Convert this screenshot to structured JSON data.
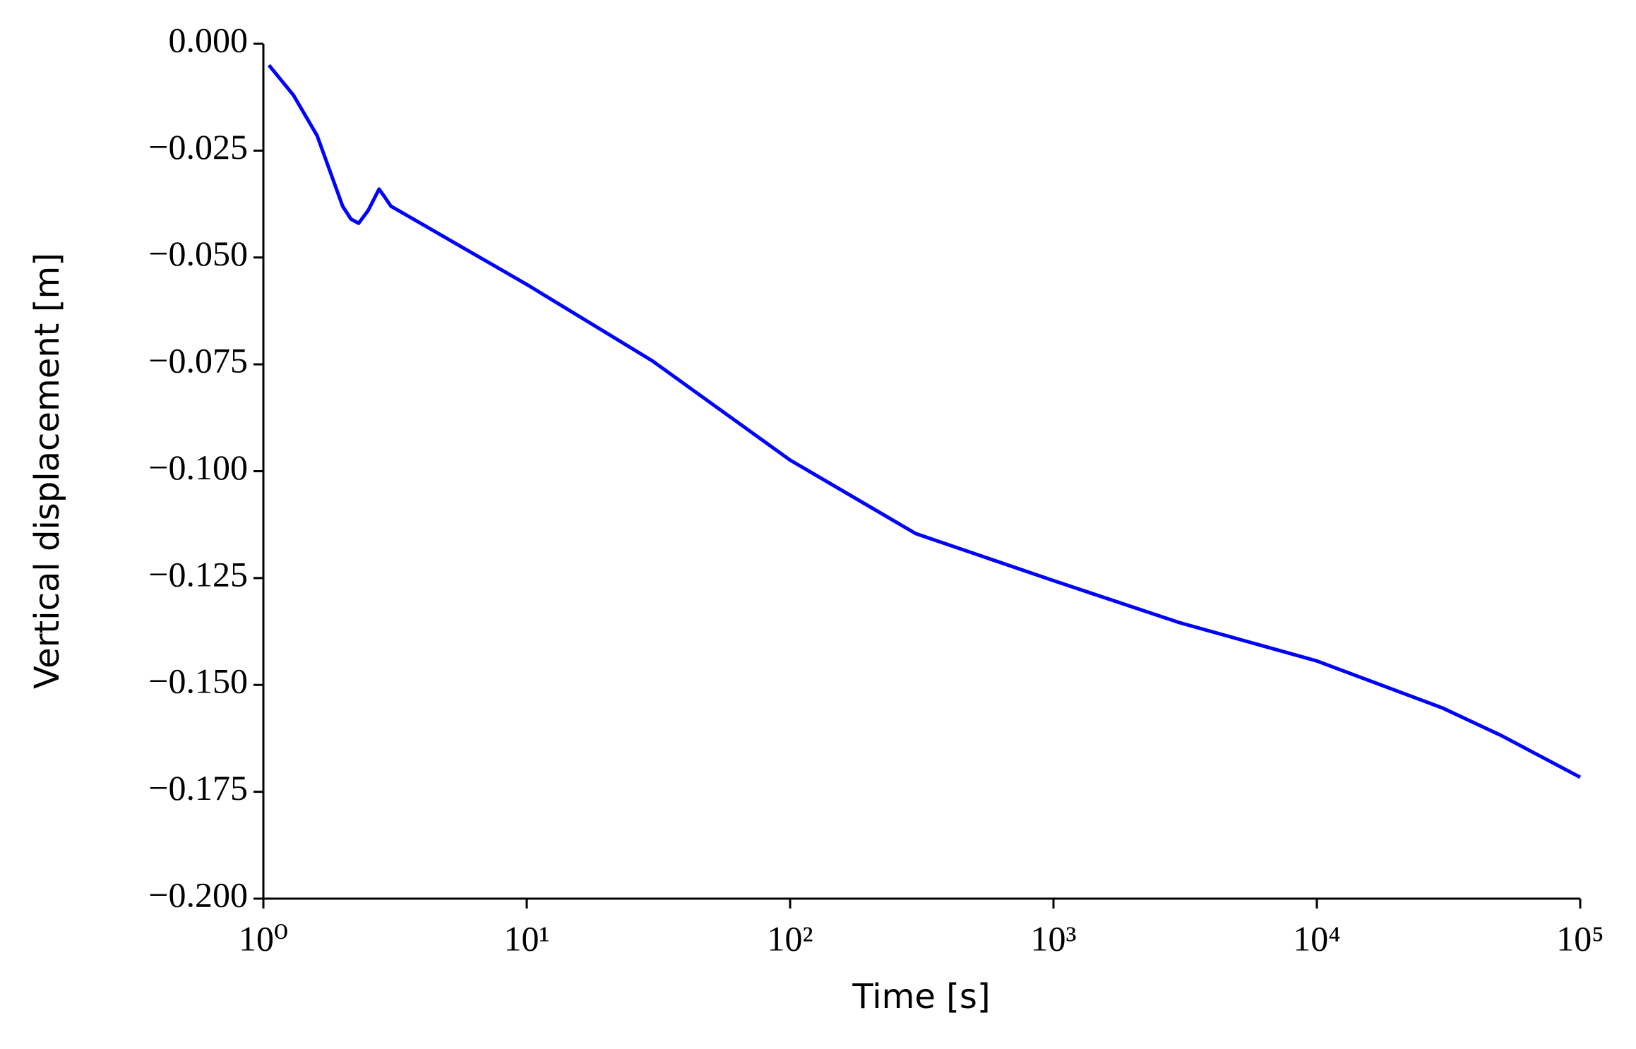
{
  "chart_data": {
    "type": "line",
    "x_label": "Time [s]",
    "y_label": "Vertical displacement [m]",
    "x_scale": "log",
    "x": [
      1.05,
      1.3,
      1.6,
      2.0,
      2.15,
      2.3,
      2.5,
      2.75,
      2.9,
      3.05,
      10,
      30,
      100,
      300,
      1000,
      3000,
      10000,
      30000,
      50000,
      100000
    ],
    "series": [
      {
        "name": "Vertical displacement",
        "color": "#0000ff",
        "values": [
          -0.005,
          -0.012,
          -0.0215,
          -0.038,
          -0.041,
          -0.042,
          -0.039,
          -0.034,
          -0.036,
          -0.038,
          -0.0563,
          -0.0742,
          -0.0974,
          -0.1146,
          -0.1256,
          -0.1354,
          -0.1444,
          -0.1554,
          -0.1618,
          -0.1716
        ]
      }
    ],
    "xlim": [
      1,
      100000
    ],
    "xticks": [
      {
        "value": 1,
        "label": "10⁰"
      },
      {
        "value": 10,
        "label": "10¹"
      },
      {
        "value": 100,
        "label": "10²"
      },
      {
        "value": 1000,
        "label": "10³"
      },
      {
        "value": 10000,
        "label": "10⁴"
      },
      {
        "value": 100000,
        "label": "10⁵"
      }
    ],
    "ylim": [
      -0.2,
      0
    ],
    "yticks": [
      {
        "value": -0.2,
        "label": "−0.200"
      },
      {
        "value": -0.175,
        "label": "−0.175"
      },
      {
        "value": -0.15,
        "label": "−0.150"
      },
      {
        "value": -0.125,
        "label": "−0.125"
      },
      {
        "value": -0.1,
        "label": "−0.100"
      },
      {
        "value": -0.075,
        "label": "−0.075"
      },
      {
        "value": -0.05,
        "label": "−0.050"
      },
      {
        "value": -0.025,
        "label": "−0.025"
      },
      {
        "value": 0,
        "label": "0.000"
      }
    ],
    "grid": false
  }
}
